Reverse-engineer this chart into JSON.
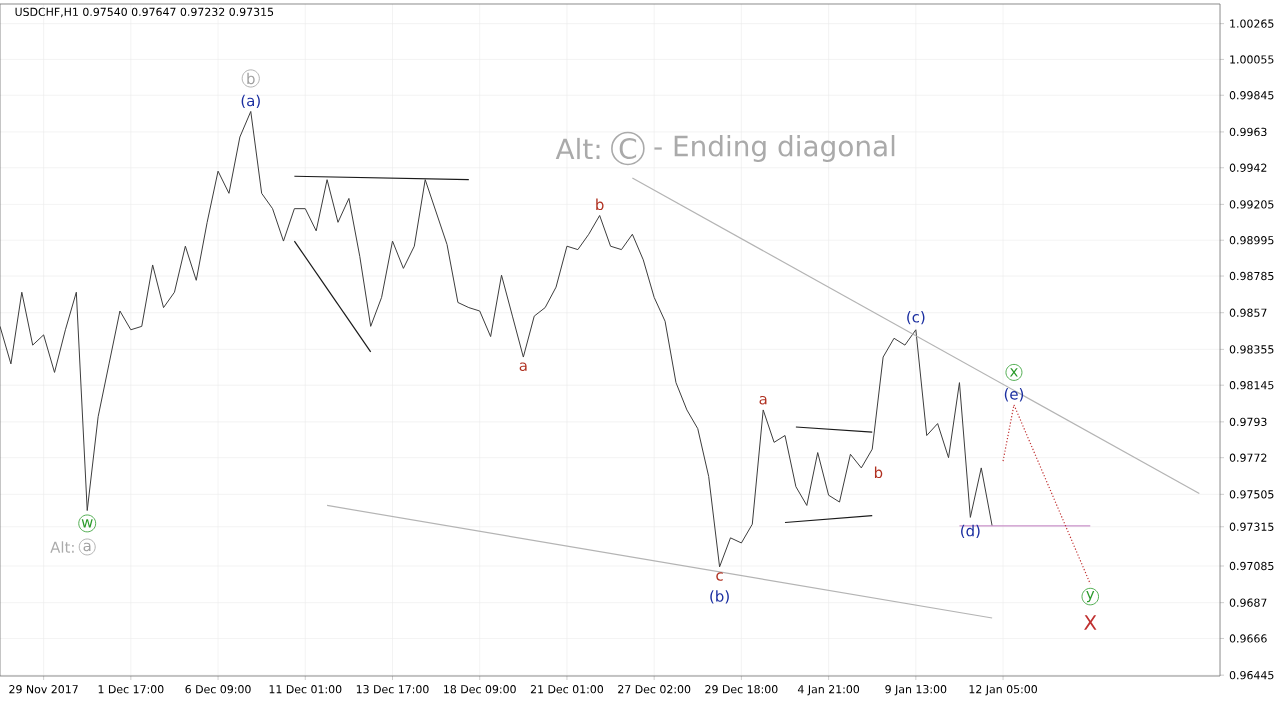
{
  "chart_data": {
    "type": "line",
    "title": "USDCHF,H1  0.97540 0.97647 0.97232 0.97315",
    "grid": true,
    "categories": [
      null,
      null,
      null,
      null,
      "29 Nov 2017",
      null,
      null,
      null,
      null,
      null,
      null,
      null,
      "1 Dec 17:00",
      null,
      null,
      null,
      null,
      null,
      null,
      null,
      "6 Dec 09:00",
      null,
      null,
      null,
      null,
      null,
      null,
      null,
      "11 Dec 01:00",
      null,
      null,
      null,
      null,
      null,
      null,
      null,
      "13 Dec 17:00",
      null,
      null,
      null,
      null,
      null,
      null,
      null,
      "18 Dec 09:00",
      null,
      null,
      null,
      null,
      null,
      null,
      null,
      "21 Dec 01:00",
      null,
      null,
      null,
      null,
      null,
      null,
      null,
      "27 Dec 02:00",
      null,
      null,
      null,
      null,
      null,
      null,
      null,
      "29 Dec 18:00",
      null,
      null,
      null,
      null,
      null,
      null,
      null,
      "4 Jan 21:00",
      null,
      null,
      null,
      null,
      null,
      null,
      null,
      "9 Jan 13:00",
      null,
      null,
      null,
      null,
      null,
      null,
      null,
      "12 Jan 05:00",
      null,
      null,
      null,
      null,
      null,
      null,
      null,
      null,
      null,
      null,
      null,
      null,
      null,
      null,
      null,
      null,
      null,
      null
    ],
    "ylim": [
      0.9644,
      1.0038
    ],
    "yticks": [
      1.00265,
      1.00055,
      0.99845,
      0.9963,
      0.9942,
      0.99205,
      0.98995,
      0.98785,
      0.9857,
      0.98355,
      0.98145,
      0.9793,
      0.9772,
      0.97505,
      {
        "value": 0.97315,
        "label": "0.97315"
      },
      0.97085,
      0.9687,
      0.9666,
      0.96445
    ],
    "series": [
      {
        "color": "#3c3c3c",
        "values": [
          0.9849,
          0.9827,
          0.9869,
          0.9838,
          0.9844,
          0.9822,
          0.9847,
          0.9869,
          0.9741,
          0.9796,
          0.9827,
          0.9858,
          0.9847,
          0.9849,
          0.9885,
          0.986,
          0.9869,
          0.9896,
          0.9876,
          0.991,
          0.994,
          0.9927,
          0.996,
          0.9975,
          0.9927,
          0.9918,
          0.9899,
          0.9918,
          0.9918,
          0.9905,
          0.9935,
          0.991,
          0.9924,
          0.989,
          0.9849,
          0.9866,
          0.9899,
          0.9883,
          0.9896,
          0.9935,
          0.9916,
          0.9897,
          0.9863,
          0.986,
          0.9858,
          0.9843,
          0.9879,
          0.9855,
          0.9831,
          0.9855,
          0.986,
          0.9872,
          0.9896,
          0.9894,
          0.9903,
          0.9914,
          0.9896,
          0.9894,
          0.9903,
          0.9888,
          0.9866,
          0.9852,
          0.9816,
          0.98,
          0.9789,
          0.9761,
          0.9708,
          0.9725,
          0.9722,
          0.9733,
          0.98,
          0.9781,
          0.9785,
          0.9755,
          0.9744,
          0.9775,
          0.975,
          0.9746,
          0.9774,
          0.9766,
          0.9777,
          0.9831,
          0.9842,
          0.9838,
          0.9847,
          0.9785,
          0.9792,
          0.9772,
          0.9816,
          0.9737,
          0.9766,
          0.9732,
          null,
          null,
          null,
          null,
          null,
          null,
          null,
          null,
          null,
          null,
          null,
          null,
          null,
          null,
          null,
          null,
          null,
          null,
          null
        ]
      },
      {
        "color": "#b4b4b4",
        "values": [
          null,
          null,
          null,
          null,
          null,
          null,
          null,
          null,
          null,
          null,
          null,
          null,
          null,
          null,
          null,
          null,
          null,
          null,
          null,
          null,
          null,
          null,
          null,
          null,
          null,
          null,
          null,
          null,
          null,
          null,
          null,
          null,
          null,
          null,
          null,
          null,
          null,
          null,
          null,
          null,
          null,
          null,
          null,
          null,
          null,
          null,
          null,
          null,
          null,
          null,
          null,
          null,
          null,
          null,
          null,
          null,
          null,
          null,
          0.9936,
          null,
          null,
          null,
          null,
          null,
          null,
          null,
          null,
          null,
          null,
          null,
          null,
          null,
          null,
          null,
          null,
          null,
          null,
          null,
          null,
          null,
          null,
          null,
          null,
          null,
          null,
          null,
          null,
          null,
          null,
          null,
          null,
          null,
          null,
          null,
          null,
          null,
          null,
          null,
          null,
          null,
          null,
          null,
          null,
          null,
          null,
          null,
          null,
          null,
          null,
          null,
          0.9751
        ]
      },
      {
        "color": "#b4b4b4",
        "values": [
          null,
          null,
          null,
          null,
          null,
          null,
          null,
          null,
          null,
          null,
          null,
          null,
          null,
          null,
          null,
          null,
          null,
          null,
          null,
          null,
          null,
          null,
          null,
          null,
          null,
          null,
          null,
          null,
          null,
          null,
          0.9744,
          null,
          null,
          null,
          null,
          null,
          null,
          null,
          null,
          null,
          null,
          null,
          null,
          null,
          null,
          null,
          null,
          null,
          null,
          null,
          null,
          null,
          null,
          null,
          null,
          null,
          null,
          null,
          null,
          null,
          null,
          null,
          null,
          null,
          null,
          null,
          null,
          null,
          null,
          null,
          null,
          null,
          null,
          null,
          null,
          null,
          null,
          null,
          null,
          null,
          null,
          null,
          null,
          null,
          null,
          null,
          null,
          null,
          null,
          null,
          null,
          0.9678,
          null,
          null,
          null,
          null,
          null,
          null,
          null,
          null,
          null,
          null,
          null,
          null,
          null,
          null,
          null,
          null,
          null,
          null,
          null
        ]
      },
      {
        "color": "#1a1a1a",
        "values": [
          null,
          null,
          null,
          null,
          null,
          null,
          null,
          null,
          null,
          null,
          null,
          null,
          null,
          null,
          null,
          null,
          null,
          null,
          null,
          null,
          null,
          null,
          null,
          null,
          null,
          null,
          null,
          0.9937,
          null,
          null,
          null,
          null,
          null,
          null,
          null,
          null,
          null,
          null,
          null,
          null,
          null,
          null,
          null,
          0.9935,
          null,
          null,
          null,
          null,
          null,
          null,
          null,
          null,
          null,
          null,
          null,
          null,
          null,
          null,
          null,
          null,
          null,
          null,
          null,
          null,
          null,
          null,
          null,
          null,
          null,
          null,
          null,
          null,
          null,
          null,
          null,
          null,
          null,
          null,
          null,
          null,
          null,
          null,
          null,
          null,
          null,
          null,
          null,
          null,
          null,
          null,
          null,
          null,
          null,
          null,
          null,
          null,
          null,
          null,
          null,
          null,
          null,
          null,
          null,
          null,
          null,
          null,
          null,
          null,
          null,
          null,
          null
        ]
      },
      {
        "color": "#1a1a1a",
        "values": [
          null,
          null,
          null,
          null,
          null,
          null,
          null,
          null,
          null,
          null,
          null,
          null,
          null,
          null,
          null,
          null,
          null,
          null,
          null,
          null,
          null,
          null,
          null,
          null,
          null,
          null,
          null,
          0.9899,
          null,
          null,
          null,
          null,
          null,
          null,
          0.9834,
          null,
          null,
          null,
          null,
          null,
          null,
          null,
          null,
          null,
          null,
          null,
          null,
          null,
          null,
          null,
          null,
          null,
          null,
          null,
          null,
          null,
          null,
          null,
          null,
          null,
          null,
          null,
          null,
          null,
          null,
          null,
          null,
          null,
          null,
          null,
          null,
          null,
          null,
          null,
          null,
          null,
          null,
          null,
          null,
          null,
          null,
          null,
          null,
          null,
          null,
          null,
          null,
          null,
          null,
          null,
          null,
          null,
          null,
          null,
          null,
          null,
          null,
          null,
          null,
          null,
          null,
          null,
          null,
          null,
          null,
          null,
          null,
          null,
          null,
          null,
          null
        ]
      },
      {
        "color": "#1a1a1a",
        "values": [
          null,
          null,
          null,
          null,
          null,
          null,
          null,
          null,
          null,
          null,
          null,
          null,
          null,
          null,
          null,
          null,
          null,
          null,
          null,
          null,
          null,
          null,
          null,
          null,
          null,
          null,
          null,
          null,
          null,
          null,
          null,
          null,
          null,
          null,
          null,
          null,
          null,
          null,
          null,
          null,
          null,
          null,
          null,
          null,
          null,
          null,
          null,
          null,
          null,
          null,
          null,
          null,
          null,
          null,
          null,
          null,
          null,
          null,
          null,
          null,
          null,
          null,
          null,
          null,
          null,
          null,
          null,
          null,
          null,
          null,
          null,
          null,
          null,
          0.979,
          null,
          null,
          null,
          null,
          null,
          null,
          0.9787,
          null,
          null,
          null,
          null,
          null,
          null,
          null,
          null,
          null,
          null,
          null,
          null,
          null,
          null,
          null,
          null,
          null,
          null,
          null,
          null,
          null,
          null,
          null,
          null,
          null,
          null,
          null,
          null,
          null,
          null
        ]
      },
      {
        "color": "#1a1a1a",
        "values": [
          null,
          null,
          null,
          null,
          null,
          null,
          null,
          null,
          null,
          null,
          null,
          null,
          null,
          null,
          null,
          null,
          null,
          null,
          null,
          null,
          null,
          null,
          null,
          null,
          null,
          null,
          null,
          null,
          null,
          null,
          null,
          null,
          null,
          null,
          null,
          null,
          null,
          null,
          null,
          null,
          null,
          null,
          null,
          null,
          null,
          null,
          null,
          null,
          null,
          null,
          null,
          null,
          null,
          null,
          null,
          null,
          null,
          null,
          null,
          null,
          null,
          null,
          null,
          null,
          null,
          null,
          null,
          null,
          null,
          null,
          null,
          null,
          0.9734,
          null,
          null,
          null,
          null,
          null,
          null,
          null,
          0.9738,
          null,
          null,
          null,
          null,
          null,
          null,
          null,
          null,
          null,
          null,
          null,
          null,
          null,
          null,
          null,
          null,
          null,
          null,
          null,
          null,
          null,
          null,
          null,
          null,
          null,
          null,
          null,
          null,
          null,
          null
        ]
      },
      {
        "color": "#c890c8",
        "values": [
          null,
          null,
          null,
          null,
          null,
          null,
          null,
          null,
          null,
          null,
          null,
          null,
          null,
          null,
          null,
          null,
          null,
          null,
          null,
          null,
          null,
          null,
          null,
          null,
          null,
          null,
          null,
          null,
          null,
          null,
          null,
          null,
          null,
          null,
          null,
          null,
          null,
          null,
          null,
          null,
          null,
          null,
          null,
          null,
          null,
          null,
          null,
          null,
          null,
          null,
          null,
          null,
          null,
          null,
          null,
          null,
          null,
          null,
          null,
          null,
          null,
          null,
          null,
          null,
          null,
          null,
          null,
          null,
          null,
          null,
          null,
          null,
          null,
          null,
          null,
          null,
          null,
          null,
          null,
          null,
          null,
          null,
          null,
          null,
          null,
          null,
          null,
          null,
          0.9732,
          null,
          null,
          null,
          null,
          null,
          null,
          null,
          null,
          null,
          null,
          null,
          0.9732,
          null,
          null,
          null,
          null,
          null,
          null,
          null,
          null,
          null,
          null
        ]
      },
      {
        "color": "#c03030",
        "line_style": "dotted",
        "values": [
          null,
          null,
          null,
          null,
          null,
          null,
          null,
          null,
          null,
          null,
          null,
          null,
          null,
          null,
          null,
          null,
          null,
          null,
          null,
          null,
          null,
          null,
          null,
          null,
          null,
          null,
          null,
          null,
          null,
          null,
          null,
          null,
          null,
          null,
          null,
          null,
          null,
          null,
          null,
          null,
          null,
          null,
          null,
          null,
          null,
          null,
          null,
          null,
          null,
          null,
          null,
          null,
          null,
          null,
          null,
          null,
          null,
          null,
          null,
          null,
          null,
          null,
          null,
          null,
          null,
          null,
          null,
          null,
          null,
          null,
          null,
          null,
          null,
          null,
          null,
          null,
          null,
          null,
          null,
          null,
          null,
          null,
          null,
          null,
          null,
          null,
          null,
          null,
          null,
          null,
          null,
          null,
          0.977,
          0.9803,
          null,
          null,
          null,
          null,
          null,
          null,
          0.9698,
          null,
          null,
          null,
          null,
          null,
          null,
          null,
          null,
          null,
          null
        ]
      }
    ],
    "annotations": [
      "b",
      "(a)",
      "w",
      "a",
      "Alt:",
      "b",
      "a",
      "c",
      "(b)",
      "a",
      "b",
      "(c)",
      "x",
      "(e)",
      "(d)",
      "y",
      "X",
      "Alt:",
      "C",
      "- Ending diagonal"
    ]
  }
}
